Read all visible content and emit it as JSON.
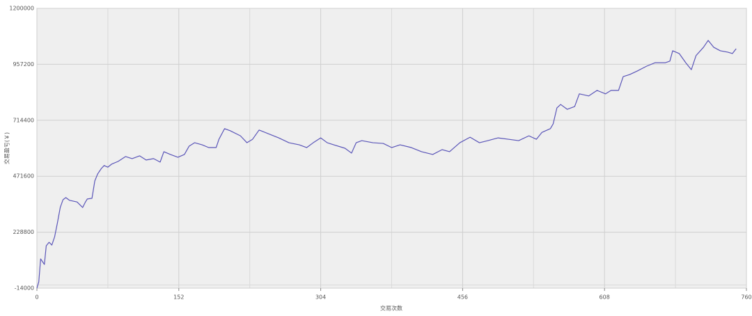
{
  "chart_data": {
    "type": "line",
    "x_label": "交易次数",
    "y_label": "交易盈亏(￥)",
    "xlim": [
      0,
      760
    ],
    "ylim": [
      -14000,
      1200000
    ],
    "xticks": [
      0,
      152,
      304,
      456,
      608,
      760
    ],
    "yticks": [
      -14000,
      228800,
      471600,
      714400,
      957200,
      1200000
    ],
    "x_minor_gridlines": [
      76,
      228,
      380,
      532,
      684
    ],
    "y_minor_gridlines": [
      0
    ],
    "grid": true,
    "x": [
      0,
      2,
      4,
      8,
      10,
      13,
      16,
      19,
      22,
      25,
      28,
      31,
      35,
      43,
      49,
      52,
      54,
      59,
      62,
      65,
      69,
      72,
      76,
      80,
      87,
      95,
      102,
      110,
      117,
      125,
      132,
      136,
      143,
      151,
      158,
      163,
      169,
      177,
      184,
      192,
      195,
      201,
      207,
      218,
      225,
      231,
      238,
      248,
      259,
      270,
      281,
      289,
      296,
      304,
      311,
      318,
      330,
      337,
      342,
      348,
      360,
      371,
      380,
      389,
      401,
      412,
      424,
      434,
      442,
      453,
      464,
      474,
      483,
      494,
      505,
      516,
      527,
      535,
      541,
      550,
      553,
      557,
      561,
      568,
      576,
      581,
      591,
      600,
      609,
      615,
      623,
      628,
      635,
      643,
      653,
      662,
      673,
      678,
      681,
      688,
      695,
      701,
      706,
      714,
      719,
      725,
      732,
      740,
      745,
      749
    ],
    "series": [
      {
        "name": "交易盈亏",
        "color": "#5a55b8",
        "values": [
          -14000,
          13000,
          113000,
          89000,
          170000,
          185000,
          173000,
          209000,
          270000,
          336000,
          370000,
          379000,
          367000,
          360000,
          336000,
          360000,
          373000,
          376000,
          451000,
          481000,
          505000,
          518000,
          511000,
          524000,
          536000,
          557000,
          548000,
          560000,
          542000,
          548000,
          533000,
          578000,
          566000,
          554000,
          566000,
          602000,
          617000,
          608000,
          596000,
          596000,
          632000,
          678000,
          669000,
          647000,
          617000,
          632000,
          672000,
          656000,
          638000,
          617000,
          608000,
          596000,
          617000,
          638000,
          617000,
          608000,
          593000,
          572000,
          617000,
          626000,
          617000,
          614000,
          596000,
          608000,
          596000,
          578000,
          566000,
          587000,
          578000,
          617000,
          641000,
          617000,
          626000,
          638000,
          632000,
          626000,
          647000,
          632000,
          662000,
          678000,
          699000,
          768000,
          783000,
          762000,
          774000,
          829000,
          820000,
          844000,
          829000,
          844000,
          844000,
          904000,
          913000,
          928000,
          949000,
          964000,
          964000,
          971000,
          1016000,
          1004000,
          964000,
          934000,
          995000,
          1031000,
          1061000,
          1031000,
          1016000,
          1010000,
          1004000,
          1025000
        ]
      }
    ]
  }
}
